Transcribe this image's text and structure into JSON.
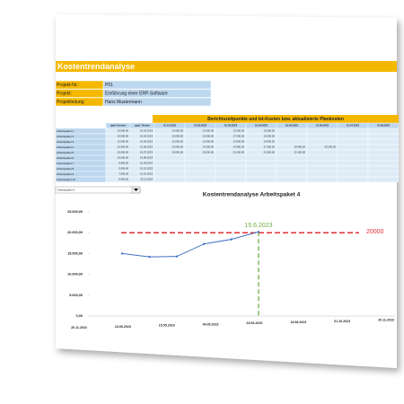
{
  "title": "Kostentrendanalyse",
  "project": {
    "fields": [
      {
        "label": "Projekt-Nr.:",
        "value": "P01"
      },
      {
        "label": "Projekt:",
        "value": "Einführung einer ERP-Software"
      },
      {
        "label": "Projektleitung:",
        "value": "Hans Mustermann"
      }
    ]
  },
  "table": {
    "group_header": "Berichtszeitpunkte und Ist-Kosten bzw. aktualisierte Plankosten",
    "columns": [
      "gepl. Kosten",
      "gepl. Termin"
    ],
    "dates": [
      "15.01.2023",
      "15.02.2023",
      "15.03.2023",
      "15.04.2023",
      "15.05.2023",
      "15.06.2023",
      "15.07.2023",
      "15.08.2023"
    ],
    "rows": [
      {
        "name": "Arbeitspaket 1",
        "cost": "10.000,00",
        "date": "15.03.2023",
        "actuals": [
          "10.000,00",
          "12.000,00",
          "11.000,00",
          "12.000,00"
        ]
      },
      {
        "name": "Arbeitspaket 2",
        "cost": "15.000,00",
        "date": "15.04.2023",
        "actuals": [
          "15.000,00",
          "16.000,00",
          "17.000,00",
          "16.000,00"
        ]
      },
      {
        "name": "Arbeitspaket 3",
        "cost": "12.000,00",
        "date": "15.05.2023",
        "actuals": [
          "12.000,00",
          "12.000,00",
          "13.000,00",
          "14.000,00"
        ]
      },
      {
        "name": "Arbeitspaket 4",
        "cost": "15.000,00",
        "date": "15.06.2023",
        "actuals": [
          "15.000,00",
          "14.200,00",
          "14.300,00",
          "17.300,00",
          "18.400,00",
          "20.200,00"
        ]
      },
      {
        "name": "Arbeitspaket 5",
        "cost": "20.000,00",
        "date": "15.07.2023",
        "actuals": [
          "20.000,00",
          "20.000,00",
          "21.000,00",
          "22.000,00",
          "21.000,00"
        ]
      },
      {
        "name": "Arbeitspaket 6",
        "cost": "15.000,00",
        "date": "15.08.2023",
        "actuals": []
      },
      {
        "name": "Arbeitspaket 7",
        "cost": "8.000,00",
        "date": "15.09.2023",
        "actuals": []
      },
      {
        "name": "Arbeitspaket 8",
        "cost": "5.000,00",
        "date": "01.10.2023",
        "actuals": []
      },
      {
        "name": "Arbeitspaket 9",
        "cost": "7.000,00",
        "date": "15.10.2023",
        "actuals": []
      },
      {
        "name": "Arbeitspaket 10",
        "cost": "9.000,00",
        "date": "20.11.2023",
        "actuals": []
      }
    ]
  },
  "selector": "Arbeitspaket 4",
  "chart": {
    "type": "line",
    "title": "Kostentrendanalyse Arbeitspaket 4",
    "x": [
      "15.01.2023",
      "15.02.2023",
      "15.03.2023",
      "15.04.2023",
      "15.05.2023",
      "15.06.2023"
    ],
    "values": [
      15000,
      14200,
      14300,
      17300,
      18400,
      20200
    ],
    "color": "#4472c4",
    "ylim": [
      0,
      25000
    ],
    "yticks": [
      {
        "value": 0,
        "label": "0,00"
      },
      {
        "value": 5000,
        "label": "5.000,00"
      },
      {
        "value": 10000,
        "label": "10.000,00"
      },
      {
        "value": 15000,
        "label": "15.000,00"
      },
      {
        "value": 20000,
        "label": "20.000,00"
      },
      {
        "value": 25000,
        "label": "25.000,00"
      }
    ],
    "xticks": [
      "20.11.2022",
      "24.06.2023",
      "15.05.2023",
      "04.05.2023",
      "23.06.2023",
      "13.08.2023",
      "01.10.2023",
      "20.11.2023"
    ],
    "marker": {
      "label": "15.6.2023",
      "color": "#70ad47"
    },
    "target": {
      "value": 20000,
      "color": "#e03030"
    }
  }
}
